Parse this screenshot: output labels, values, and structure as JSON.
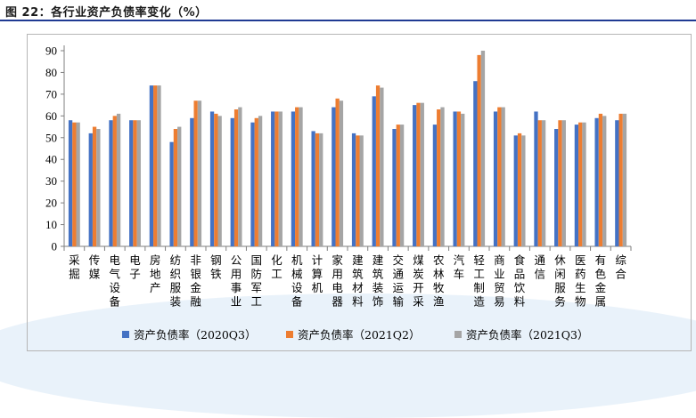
{
  "header": {
    "title": "图 22：各行业资产负债率变化（%）"
  },
  "colors": {
    "series1": "#4472c4",
    "series2": "#ed7d31",
    "series3": "#a5a5a5"
  },
  "chart_data": {
    "type": "bar",
    "categories": [
      "采掘",
      "传媒",
      "电气设备",
      "电子",
      "房地产",
      "纺织服装",
      "非银金融",
      "钢铁",
      "公用事业",
      "国防军工",
      "化工",
      "机械设备",
      "计算机",
      "家用电器",
      "建筑材料",
      "建筑装饰",
      "交通运输",
      "煤炭开采",
      "农林牧渔",
      "汽车",
      "轻工制造",
      "商业贸易",
      "食品饮料",
      "通信",
      "休闲服务",
      "医药生物",
      "有色金属",
      "综合"
    ],
    "series": [
      {
        "name": "资产负债率（2020Q3）",
        "values": [
          58,
          52,
          58,
          58,
          74,
          48,
          59,
          62,
          59,
          57,
          62,
          62,
          53,
          64,
          52,
          69,
          54,
          65,
          56,
          62,
          76,
          62,
          51,
          62,
          54,
          56,
          59,
          58
        ]
      },
      {
        "name": "资产负债率（2021Q2）",
        "values": [
          57,
          55,
          60,
          58,
          74,
          54,
          67,
          61,
          63,
          59,
          62,
          64,
          52,
          68,
          51,
          74,
          56,
          66,
          63,
          62,
          88,
          64,
          52,
          58,
          58,
          57,
          61,
          61
        ]
      },
      {
        "name": "资产负债率（2021Q3）",
        "values": [
          57,
          54,
          61,
          58,
          74,
          55,
          67,
          60,
          64,
          60,
          62,
          64,
          52,
          67,
          51,
          73,
          56,
          66,
          64,
          61,
          90,
          64,
          51,
          58,
          58,
          57,
          60,
          61
        ]
      }
    ],
    "yticks": [
      0,
      10,
      20,
      30,
      40,
      50,
      60,
      70,
      80,
      90
    ],
    "ylim": [
      0,
      95
    ],
    "grid": false,
    "legend": "bottom"
  }
}
